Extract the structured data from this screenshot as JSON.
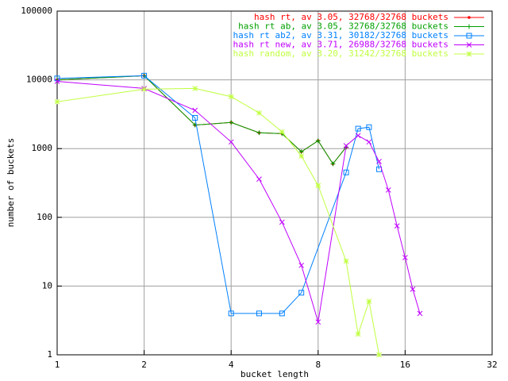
{
  "chart_data": {
    "type": "line",
    "xlabel": "bucket length",
    "ylabel": "number of buckets",
    "xlog": true,
    "ylog": true,
    "grid": true,
    "legend": "top-right",
    "xlim": [
      1,
      32
    ],
    "xticks": [
      1,
      2,
      4,
      8,
      16,
      32
    ],
    "ylim": [
      1,
      100000
    ],
    "yticks": [
      1,
      10,
      100,
      1000,
      10000,
      100000
    ],
    "series": [
      {
        "name": "hash rt, av 3.05, 32768/32768 buckets",
        "color": "#ff0000",
        "marker": "dot",
        "x": [
          1,
          2,
          3,
          4,
          5,
          6,
          7,
          8,
          9,
          10
        ],
        "values": [
          10000,
          11500,
          2200,
          2400,
          1700,
          1650,
          900,
          1300,
          600,
          1050
        ]
      },
      {
        "name": "hash rt ab, av 3.05, 32768/32768 buckets",
        "color": "#00a000",
        "marker": "plus",
        "x": [
          1,
          2,
          3,
          4,
          5,
          6,
          7,
          8,
          9,
          10
        ],
        "values": [
          10000,
          11500,
          2200,
          2400,
          1700,
          1650,
          900,
          1300,
          600,
          1050
        ]
      },
      {
        "name": "hash rt ab2, av 3.31, 30182/32768 buckets",
        "color": "#0080ff",
        "marker": "square",
        "x": [
          1,
          2,
          3,
          4,
          5,
          6,
          7,
          10,
          11,
          12,
          13
        ],
        "values": [
          10500,
          11500,
          2800,
          4,
          4,
          4,
          8,
          450,
          1950,
          2050,
          500
        ]
      },
      {
        "name": "hash rt new, av 3.71, 26988/32768 buckets",
        "color": "#c000ff",
        "marker": "cross",
        "x": [
          1,
          2,
          3,
          4,
          5,
          6,
          7,
          8,
          10,
          11,
          12,
          13,
          14,
          15,
          16,
          17,
          18
        ],
        "values": [
          9500,
          7500,
          3600,
          1250,
          360,
          85,
          20,
          3,
          1100,
          1550,
          1250,
          650,
          250,
          75,
          26,
          9,
          4
        ]
      },
      {
        "name": "hash random, av 3.20, 31242/32768 buckets",
        "color": "#c0ff40",
        "marker": "star",
        "x": [
          1,
          2,
          3,
          4,
          5,
          6,
          7,
          8,
          10,
          11,
          12,
          13
        ],
        "values": [
          4800,
          7300,
          7500,
          5700,
          3300,
          1750,
          780,
          290,
          23,
          2,
          6,
          1
        ]
      }
    ]
  }
}
